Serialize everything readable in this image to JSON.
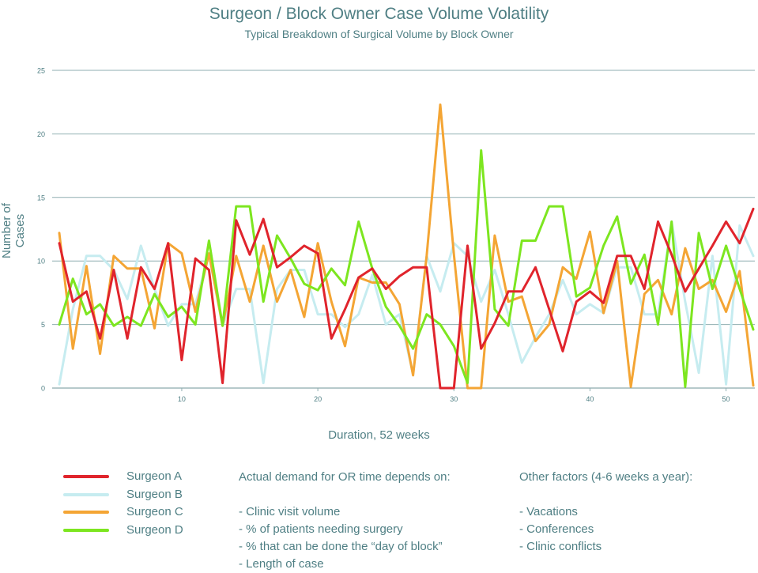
{
  "chart_data": {
    "type": "line",
    "title": "Surgeon / Block Owner Case Volume Volatility",
    "subtitle": "Typical Breakdown of Surgical Volume by Block Owner",
    "xlabel": "Duration, 52 weeks",
    "ylabel": "Number of Cases",
    "xlim": [
      1,
      52
    ],
    "ylim": [
      0,
      25
    ],
    "xticks": [
      10,
      20,
      30,
      40,
      50
    ],
    "yticks": [
      0,
      5,
      10,
      15,
      20,
      25
    ],
    "grid": "horizontal",
    "legend": "bottom-left",
    "x": [
      1,
      2,
      3,
      4,
      5,
      6,
      7,
      8,
      9,
      10,
      11,
      12,
      13,
      14,
      15,
      16,
      17,
      18,
      19,
      20,
      21,
      22,
      23,
      24,
      25,
      26,
      27,
      28,
      29,
      30,
      31,
      32,
      33,
      34,
      35,
      36,
      37,
      38,
      39,
      40,
      41,
      42,
      43,
      44,
      45,
      46,
      47,
      48,
      49,
      50,
      51,
      52
    ],
    "series": [
      {
        "name": "Surgeon A",
        "color": "#e0242c",
        "values": [
          11.4,
          6.8,
          7.6,
          3.9,
          9.3,
          3.9,
          9.5,
          7.8,
          11.4,
          2.2,
          10.2,
          9.3,
          0.4,
          13.2,
          10.5,
          13.3,
          9.5,
          10.3,
          11.2,
          10.6,
          3.9,
          6.2,
          8.7,
          9.4,
          7.8,
          8.8,
          9.5,
          9.5,
          0,
          0,
          11.2,
          3.1,
          5.1,
          7.6,
          7.6,
          9.5,
          6.2,
          2.9,
          6.8,
          7.6,
          6.7,
          10.4,
          10.4,
          7.8,
          13.1,
          10.5,
          7.6,
          9.4,
          11.2,
          13.1,
          11.4,
          14.1
        ]
      },
      {
        "name": "Surgeon B",
        "color": "#c6ecf0",
        "values": [
          0.3,
          6.2,
          10.4,
          10.4,
          9.3,
          7.0,
          11.2,
          7.8,
          4.9,
          6.6,
          6.6,
          10.5,
          4.9,
          7.8,
          7.8,
          0.4,
          7.8,
          9.3,
          9.3,
          5.8,
          5.8,
          4.8,
          5.8,
          8.9,
          5.0,
          5.8,
          1.1,
          10.4,
          7.6,
          11.4,
          10.4,
          6.8,
          9.3,
          5.8,
          2.0,
          4.0,
          5.8,
          8.5,
          5.8,
          6.6,
          5.9,
          9.5,
          9.5,
          5.8,
          5.8,
          13.1,
          6.8,
          1.2,
          10.4,
          0.3,
          12.8,
          10.4
        ]
      },
      {
        "name": "Surgeon C",
        "color": "#f4a534",
        "values": [
          12.2,
          3.1,
          9.6,
          2.7,
          10.4,
          9.4,
          9.4,
          4.7,
          11.4,
          10.6,
          6.0,
          10.6,
          4.9,
          10.4,
          6.8,
          11.2,
          6.8,
          9.3,
          5.6,
          11.4,
          6.8,
          3.3,
          8.7,
          8.3,
          8.3,
          6.6,
          1.0,
          10.4,
          22.3,
          10.5,
          0,
          0,
          12.0,
          6.8,
          7.2,
          3.7,
          5.0,
          9.5,
          8.6,
          12.3,
          5.9,
          10.0,
          0.1,
          7.4,
          8.5,
          5.8,
          11.0,
          7.8,
          8.5,
          6.0,
          9.2,
          0.2
        ]
      },
      {
        "name": "Surgeon D",
        "color": "#7de620",
        "values": [
          5.0,
          8.6,
          5.8,
          6.6,
          4.9,
          5.6,
          4.9,
          7.4,
          5.6,
          6.4,
          5.0,
          11.6,
          4.9,
          14.3,
          14.3,
          6.8,
          12.0,
          10.2,
          8.2,
          7.7,
          9.4,
          8.1,
          13.1,
          9.4,
          6.4,
          4.9,
          3.1,
          5.8,
          5.0,
          3.3,
          0.4,
          18.7,
          6.2,
          4.9,
          11.6,
          11.6,
          14.3,
          14.3,
          7.2,
          7.9,
          11.2,
          13.5,
          8.2,
          10.5,
          5.0,
          13.1,
          0.1,
          12.2,
          7.8,
          11.2,
          7.8,
          4.6
        ]
      }
    ]
  },
  "legend": {
    "items": [
      {
        "label": "Surgeon A",
        "color": "#e0242c"
      },
      {
        "label": "Surgeon B",
        "color": "#c6ecf0"
      },
      {
        "label": "Surgeon C",
        "color": "#f4a534"
      },
      {
        "label": "Surgeon D",
        "color": "#7de620"
      }
    ]
  },
  "notes": {
    "demand": {
      "heading": "Actual demand for OR time depends on:",
      "items": [
        "- Clinic visit volume",
        "- % of patients needing surgery",
        "- % that can be done the “day of block”",
        "- Length of case"
      ]
    },
    "factors": {
      "heading": "Other factors (4-6 weeks a year):",
      "items": [
        "- Vacations",
        "- Conferences",
        "- Clinic conflicts"
      ]
    }
  }
}
